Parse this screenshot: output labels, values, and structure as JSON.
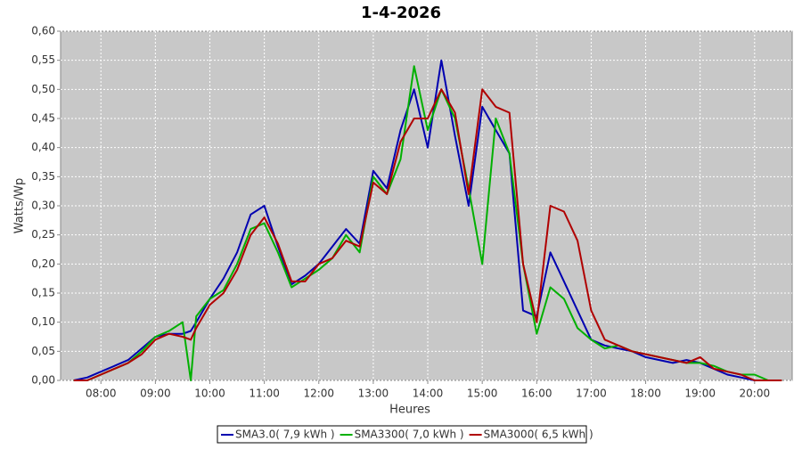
{
  "chart_data": {
    "type": "line",
    "title": "1-4-2026",
    "x_label": "Heures",
    "y_label": "Watts/Wp",
    "x": [
      7.5,
      7.75,
      8,
      8.25,
      8.5,
      8.75,
      9,
      9.25,
      9.5,
      9.65,
      9.75,
      10,
      10.25,
      10.5,
      10.75,
      11,
      11.25,
      11.5,
      11.75,
      12,
      12.25,
      12.5,
      12.75,
      13,
      13.25,
      13.5,
      13.75,
      14,
      14.25,
      14.5,
      14.75,
      15,
      15.25,
      15.5,
      15.75,
      16,
      16.25,
      16.5,
      16.75,
      17,
      17.25,
      17.5,
      17.75,
      18,
      18.25,
      18.5,
      18.75,
      19,
      19.25,
      19.5,
      19.75,
      20,
      20.25,
      20.5
    ],
    "series": [
      {
        "name": "SMA3.0( 7,9 kWh )",
        "color": "#0000b0",
        "values": [
          0,
          0.005,
          0.015,
          0.025,
          0.035,
          0.055,
          0.075,
          0.08,
          0.08,
          0.085,
          0.1,
          0.14,
          0.175,
          0.22,
          0.285,
          0.3,
          0.23,
          0.165,
          0.18,
          0.2,
          0.23,
          0.26,
          0.235,
          0.36,
          0.33,
          0.43,
          0.5,
          0.4,
          0.55,
          0.42,
          0.3,
          0.47,
          0.43,
          0.39,
          0.12,
          0.11,
          0.22,
          0.17,
          0.12,
          0.07,
          0.06,
          0.055,
          0.05,
          0.04,
          0.035,
          0.03,
          0.035,
          0.03,
          0.02,
          0.01,
          0.005,
          0,
          0,
          0
        ]
      },
      {
        "name": "SMA3300( 7,0 kWh )",
        "color": "#00b000",
        "values": [
          0,
          0,
          0.01,
          0.02,
          0.03,
          0.05,
          0.075,
          0.085,
          0.1,
          0,
          0.11,
          0.14,
          0.155,
          0.2,
          0.26,
          0.27,
          0.22,
          0.16,
          0.175,
          0.19,
          0.21,
          0.25,
          0.22,
          0.35,
          0.32,
          0.38,
          0.54,
          0.43,
          0.5,
          0.45,
          0.33,
          0.2,
          0.45,
          0.39,
          0.2,
          0.08,
          0.16,
          0.14,
          0.09,
          0.07,
          0.055,
          0.06,
          0.05,
          0.045,
          0.04,
          0.035,
          0.03,
          0.03,
          0.025,
          0.015,
          0.01,
          0.01,
          0,
          0
        ]
      },
      {
        "name": "SMA3000( 6,5 kWh )",
        "color": "#b00000",
        "values": [
          0,
          0,
          0.01,
          0.02,
          0.03,
          0.045,
          0.07,
          0.08,
          0.075,
          0.07,
          0.09,
          0.13,
          0.15,
          0.19,
          0.25,
          0.28,
          0.235,
          0.17,
          0.17,
          0.2,
          0.21,
          0.24,
          0.23,
          0.34,
          0.32,
          0.41,
          0.45,
          0.45,
          0.5,
          0.46,
          0.32,
          0.5,
          0.47,
          0.46,
          0.2,
          0.1,
          0.3,
          0.29,
          0.24,
          0.12,
          0.07,
          0.06,
          0.05,
          0.045,
          0.04,
          0.035,
          0.03,
          0.04,
          0.02,
          0.015,
          0.01,
          0,
          0,
          0
        ]
      }
    ],
    "xlim": [
      7.26,
      20.69
    ],
    "xticks": [
      {
        "value": 8,
        "label": "08:00"
      },
      {
        "value": 9,
        "label": "09:00"
      },
      {
        "value": 10,
        "label": "10:00"
      },
      {
        "value": 11,
        "label": "11:00"
      },
      {
        "value": 12,
        "label": "12:00"
      },
      {
        "value": 13,
        "label": "13:00"
      },
      {
        "value": 14,
        "label": "14:00"
      },
      {
        "value": 15,
        "label": "15:00"
      },
      {
        "value": 16,
        "label": "16:00"
      },
      {
        "value": 17,
        "label": "17:00"
      },
      {
        "value": 18,
        "label": "18:00"
      },
      {
        "value": 19,
        "label": "19:00"
      },
      {
        "value": 20,
        "label": "20:00"
      }
    ],
    "ylim": [
      0,
      0.6
    ],
    "yticks": [
      {
        "value": 0,
        "label": "0,00"
      },
      {
        "value": 0.05,
        "label": "0,05"
      },
      {
        "value": 0.1,
        "label": "0,10"
      },
      {
        "value": 0.15,
        "label": "0,15"
      },
      {
        "value": 0.2,
        "label": "0,20"
      },
      {
        "value": 0.25,
        "label": "0,25"
      },
      {
        "value": 0.3,
        "label": "0,30"
      },
      {
        "value": 0.35,
        "label": "0,35"
      },
      {
        "value": 0.4,
        "label": "0,40"
      },
      {
        "value": 0.45,
        "label": "0,45"
      },
      {
        "value": 0.5,
        "label": "0,50"
      },
      {
        "value": 0.55,
        "label": "0,55"
      },
      {
        "value": 0.6,
        "label": "0,60"
      }
    ],
    "grid": true,
    "legend": "bottom"
  }
}
